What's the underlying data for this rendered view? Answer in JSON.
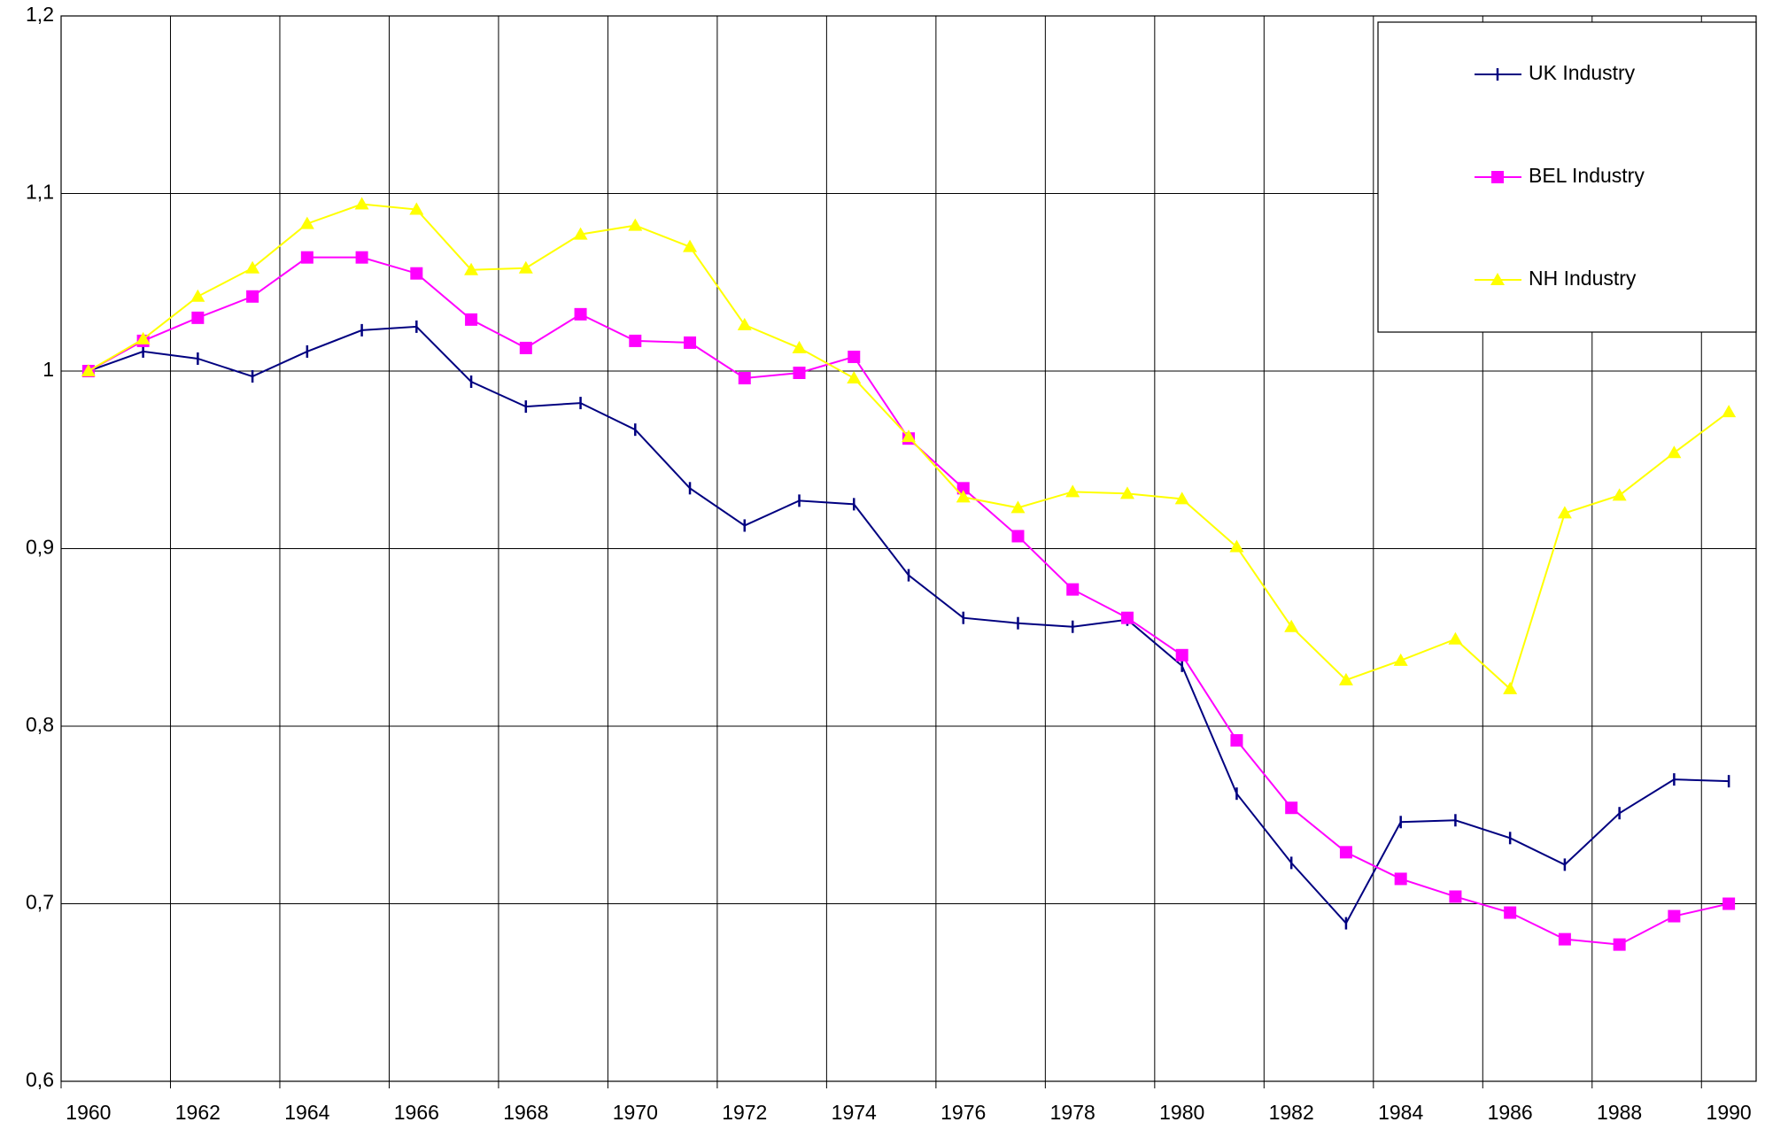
{
  "chart_data": {
    "type": "line",
    "categories": [
      "1960",
      null,
      "1962",
      null,
      "1964",
      null,
      "1966",
      null,
      "1968",
      null,
      "1970",
      null,
      "1972",
      null,
      "1974",
      null,
      "1976",
      null,
      "1978",
      null,
      "1980",
      null,
      "1982",
      null,
      "1984",
      null,
      "1986",
      null,
      "1988",
      null,
      "1990"
    ],
    "series": [
      {
        "name": "UK Industry",
        "color": "#000080",
        "marker": "tick",
        "values": [
          1.0,
          1.011,
          1.007,
          0.997,
          1.011,
          1.023,
          1.025,
          0.994,
          0.98,
          0.982,
          0.967,
          0.934,
          0.913,
          0.927,
          0.925,
          0.885,
          0.861,
          0.858,
          0.856,
          0.86,
          0.834,
          0.762,
          0.723,
          0.689,
          0.746,
          0.747,
          0.737,
          0.722,
          0.751,
          0.77,
          0.769
        ]
      },
      {
        "name": "BEL Industry",
        "color": "#ff00ff",
        "marker": "square",
        "values": [
          1.0,
          1.017,
          1.03,
          1.042,
          1.064,
          1.064,
          1.055,
          1.029,
          1.013,
          1.032,
          1.017,
          1.016,
          0.996,
          0.999,
          1.008,
          0.962,
          0.934,
          0.907,
          0.877,
          0.861,
          0.84,
          0.792,
          0.754,
          0.729,
          0.714,
          0.704,
          0.695,
          0.68,
          0.677,
          0.693,
          0.7
        ]
      },
      {
        "name": "NH Industry",
        "color": "#ffff00",
        "marker": "triangle",
        "values": [
          1.0,
          1.018,
          1.042,
          1.058,
          1.083,
          1.094,
          1.091,
          1.057,
          1.058,
          1.077,
          1.082,
          1.07,
          1.026,
          1.013,
          0.996,
          0.963,
          0.929,
          0.923,
          0.932,
          0.931,
          0.928,
          0.901,
          0.856,
          0.826,
          0.837,
          0.849,
          0.821,
          0.92,
          0.93,
          0.954,
          0.977
        ]
      }
    ],
    "ylim": [
      0.6,
      1.2
    ],
    "yticks": [
      {
        "value": 0.6,
        "label": "0,6"
      },
      {
        "value": 0.7,
        "label": "0,7"
      },
      {
        "value": 0.8,
        "label": "0,8"
      },
      {
        "value": 0.9,
        "label": "0,9"
      },
      1,
      {
        "value": 1.1,
        "label": "1,1"
      },
      {
        "value": 1.2,
        "label": "1,2"
      }
    ],
    "grid": true,
    "legend": "top-right"
  }
}
